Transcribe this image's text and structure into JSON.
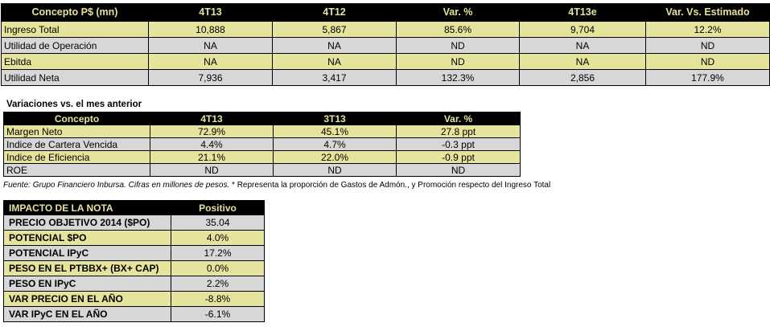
{
  "table1": {
    "headers": [
      "Concepto P$ (mn)",
      "4T13",
      "4T12",
      "Var. %",
      "4T13e",
      "Var. Vs. Estimado"
    ],
    "rows": [
      [
        "Ingreso Total",
        "10,888",
        "5,867",
        "85.6%",
        "9,704",
        "12.2%"
      ],
      [
        "Utilidad de Operación",
        "NA",
        "NA",
        "ND",
        "NA",
        "ND"
      ],
      [
        "Ebitda",
        "NA",
        "NA",
        "ND",
        "NA",
        "ND"
      ],
      [
        "Utilidad Neta",
        "7,936",
        "3,417",
        "132.3%",
        "2,856",
        "177.9%"
      ]
    ]
  },
  "subtitle": "Variaciones vs. el mes anterior",
  "table2": {
    "headers": [
      "Concepto",
      "4T13",
      "3T13",
      "Var. %"
    ],
    "rows": [
      [
        "Margen Neto",
        "72.9%",
        "45.1%",
        "27.8 ppt"
      ],
      [
        "Indice de Cartera Vencida",
        "4.4%",
        "4.7%",
        "-0.3 ppt"
      ],
      [
        "Indice de Eficiencia",
        "21.1%",
        "22.0%",
        "-0.9 ppt"
      ],
      [
        "ROE",
        "ND",
        "ND",
        "ND"
      ]
    ]
  },
  "footnote": {
    "source": "Fuente: Grupo Financiero Inbursa. Cifras en millones de pesos.",
    "text": " * Representa la proporción de Gastos de Admón., y Promoción respecto del Ingreso Total"
  },
  "table3": {
    "headers": [
      "IMPACTO DE LA NOTA",
      "Positivo"
    ],
    "rows": [
      [
        "PRECIO OBJETIVO 2014 ($PO)",
        "35.04"
      ],
      [
        "POTENCIAL $PO",
        "4.0%"
      ],
      [
        "POTENCIAL IPyC",
        "17.2%"
      ],
      [
        "PESO EN EL PTBBX+ (BX+ CAP)",
        "0.0%"
      ],
      [
        "PESO EN IPyC",
        "2.2%"
      ],
      [
        "VAR PRECIO EN EL AÑO",
        "-8.8%"
      ],
      [
        "VAR IPyC EN EL AÑO",
        "-6.1%"
      ]
    ]
  },
  "colors": {
    "header_bg": "#000000",
    "header_text": "#e6e29b",
    "row_yellow": "#e6e39c",
    "row_gray": "#d7d7d7"
  }
}
